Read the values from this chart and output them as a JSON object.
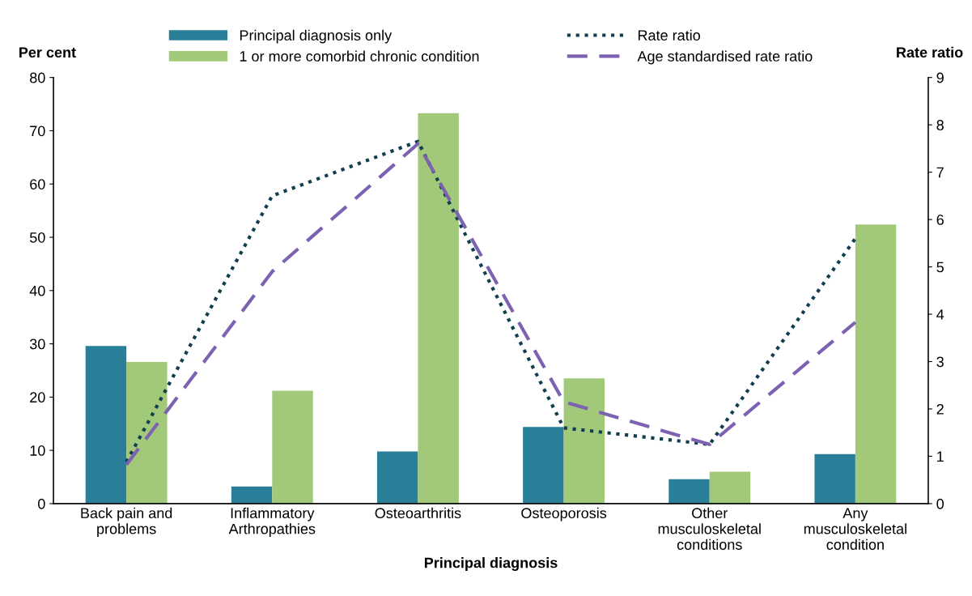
{
  "chart_data": {
    "type": "bar",
    "xlabel": "Principal diagnosis",
    "ylabel": "Per cent",
    "y2label": "Rate ratio",
    "categories": [
      "Back pain and\nproblems",
      "Inflammatory\nArthropathies",
      "Osteoarthritis",
      "Osteoporosis",
      "Other\nmusculoskeletal\nconditions",
      "Any\nmusculoskeletal\ncondition"
    ],
    "series": [
      {
        "name": "Principal diagnosis only",
        "color": "#2a7f98",
        "values": [
          29.6,
          3.2,
          9.8,
          14.4,
          4.6,
          9.3
        ]
      },
      {
        "name": "1 or more comorbid chronic condition",
        "color": "#a2c87a",
        "values": [
          26.6,
          21.2,
          73.3,
          23.5,
          6.0,
          52.4
        ]
      },
      {
        "name": "Rate ratio",
        "type": "line",
        "axis": "y2",
        "color": "#123f4f",
        "line_style": "dotted",
        "values": [
          0.88,
          6.5,
          7.65,
          1.6,
          1.25,
          5.6
        ]
      },
      {
        "name": "Age standardised rate ratio",
        "type": "line",
        "axis": "y2",
        "color": "#7d62b2",
        "line_style": "dashed",
        "values": [
          0.82,
          4.9,
          7.6,
          2.15,
          1.25,
          3.83
        ]
      }
    ],
    "ylim": [
      0,
      80
    ],
    "yticks": [
      0,
      10,
      20,
      30,
      40,
      50,
      60,
      70,
      80
    ],
    "y2lim": [
      0,
      9
    ],
    "y2ticks": [
      0,
      1,
      2,
      3,
      4,
      5,
      6,
      7,
      8,
      9
    ],
    "grid": false,
    "legend": "top",
    "marker": "none"
  }
}
